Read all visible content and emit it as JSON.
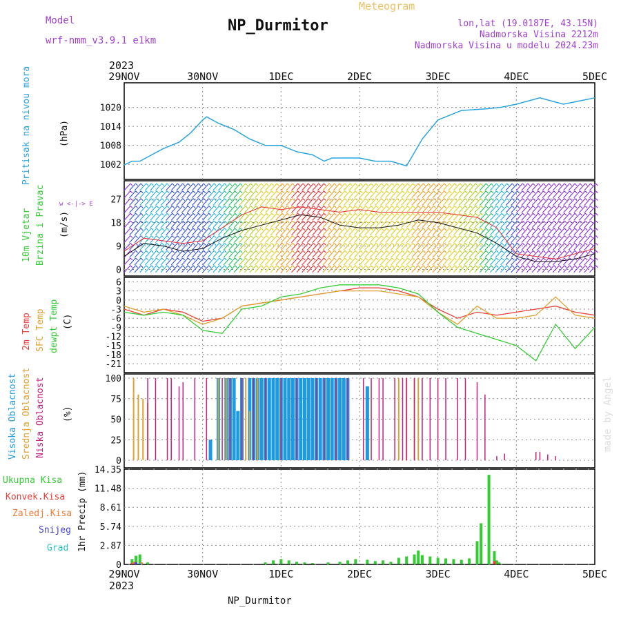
{
  "header": {
    "model_label": "Model",
    "model_name": "wrf-nmm_v3.9.1 e1km",
    "station": "NP_Durmitor",
    "meteogram": "Meteogram",
    "lonlat": "lon,lat (19.0187E, 43.15N)",
    "elevation": "Nadmorska Visina 2212m",
    "model_elevation": "Nadmorska Visina u modelu 2024.23m",
    "year_top": "2023",
    "year_bottom": "2023",
    "footer_station": "NP_Durmitor",
    "credit": "made by Angel"
  },
  "colors": {
    "pressure": "#29a3e0",
    "temp2m": "#e8413a",
    "sfc_temp": "#e0a030",
    "dewpt": "#33cc33",
    "high_cloud": "#1e9be0",
    "mid_cloud": "#e0a030",
    "low_cloud": "#c0207e",
    "total_precip": "#33cc33",
    "conv_precip": "#e8413a",
    "strat_precip": "#f07a30",
    "snow": "#4444dd",
    "hail": "#2cc0c0",
    "label_purple": "#a040d0",
    "label_green": "#33cc33"
  },
  "panel_labels": {
    "pressure": "Pritisak na nivou mora",
    "pressure_unit": "(hPa)",
    "wind_a": "10m Vjetar",
    "wind_b": "Brzina i Pravac",
    "wind_unit": "(m/s)",
    "wind_rose": "w  <-|->  E",
    "temp_a": "2m Temp",
    "temp_b": "SFC Temp",
    "temp_c": "dewpt Temp",
    "temp_unit": "(C)",
    "cloud_a": "Visoka Oblacnost",
    "cloud_b": "Srednja Oblacnost",
    "cloud_c": "Niska Oblacnost",
    "cloud_unit": "(%)",
    "precip_total": "Ukupna Kisa",
    "precip_conv": "Konvek.Kisa",
    "precip_strat": "Zaledj.Kisa",
    "precip_snow": "Snijeg",
    "precip_hail": "Grad",
    "precip_axis": "1hr Precip (mm)"
  },
  "chart_data": [
    {
      "type": "line",
      "name": "pressure",
      "x_labels": [
        "29NOV",
        "30NOV",
        "1DEC",
        "2DEC",
        "3DEC",
        "4DEC",
        "5DEC"
      ],
      "yticks": [
        "1002",
        "1008",
        "1014",
        "1020"
      ],
      "ylim": [
        999,
        1026
      ],
      "ylabel": "(hPa)",
      "grid": true,
      "x_days": [
        0,
        0.1,
        0.2,
        0.35,
        0.5,
        0.7,
        0.85,
        1.0,
        1.05,
        1.2,
        1.4,
        1.6,
        1.8,
        2.0,
        2.2,
        2.4,
        2.55,
        2.65,
        2.8,
        3.0,
        3.2,
        3.4,
        3.6,
        3.8,
        4.0,
        4.3,
        4.6,
        4.8,
        5.0,
        5.3,
        5.6,
        5.8,
        6.0
      ],
      "values": [
        1001.8,
        1003,
        1003,
        1005,
        1007,
        1009,
        1012,
        1016,
        1017,
        1015,
        1013,
        1010,
        1008,
        1008,
        1006,
        1005,
        1003,
        1004,
        1004,
        1004,
        1003,
        1003,
        1001.5,
        1010,
        1016,
        1019,
        1019.5,
        1020,
        1021,
        1023,
        1021,
        1022,
        1023
      ]
    },
    {
      "type": "line",
      "name": "wind",
      "yticks": [
        "0",
        "9",
        "18",
        "27"
      ],
      "ylim": [
        -2,
        33
      ],
      "ylabel": "(m/s)",
      "x_days": [
        0,
        0.25,
        0.5,
        0.75,
        1.0,
        1.25,
        1.5,
        1.75,
        2.0,
        2.25,
        2.5,
        2.75,
        3.0,
        3.25,
        3.5,
        3.75,
        4.0,
        4.25,
        4.5,
        4.75,
        5.0,
        5.25,
        5.5,
        5.75,
        6.0
      ],
      "values": [
        5,
        10,
        9,
        7,
        8,
        12,
        15,
        17,
        19,
        21,
        20,
        17,
        16,
        16,
        17,
        19,
        18,
        16,
        14,
        10,
        5,
        3,
        3,
        4,
        6
      ],
      "gusts": [
        7,
        12,
        11,
        10,
        11,
        16,
        21,
        24,
        23,
        24,
        23,
        22,
        23,
        22,
        22,
        22,
        22,
        21,
        20,
        16,
        6,
        5,
        4,
        6,
        8
      ]
    },
    {
      "type": "line",
      "name": "temperature",
      "yticks": [
        "6",
        "3",
        "0",
        "-3",
        "-6",
        "-9",
        "-12",
        "-15",
        "-18",
        "-21"
      ],
      "ylim": [
        -23,
        7
      ],
      "ylabel": "(C)",
      "x_days": [
        0,
        0.25,
        0.5,
        0.75,
        1.0,
        1.25,
        1.5,
        1.75,
        2.0,
        2.25,
        2.5,
        2.75,
        3.0,
        3.25,
        3.5,
        3.75,
        4.0,
        4.25,
        4.5,
        4.75,
        5.0,
        5.25,
        5.5,
        5.75,
        6.0
      ],
      "series": [
        {
          "name": "2m Temp",
          "values": [
            -3,
            -5,
            -3,
            -4,
            -7,
            -6,
            -2,
            -1,
            0,
            1,
            2,
            3,
            4,
            4,
            3,
            1,
            -3,
            -6,
            -4,
            -5,
            -4,
            -3,
            -2,
            -4,
            -5
          ]
        },
        {
          "name": "SFC Temp",
          "values": [
            -2,
            -4,
            -3,
            -5,
            -8,
            -6,
            -2,
            -1,
            0,
            1,
            2,
            3,
            3,
            3,
            2,
            1,
            -4,
            -8,
            -2,
            -6,
            -6,
            -5,
            1,
            -5,
            -6
          ]
        },
        {
          "name": "dewpt Temp",
          "values": [
            -4,
            -5,
            -4,
            -5,
            -10,
            -11,
            -3,
            -2,
            1,
            2,
            4,
            5,
            5,
            5,
            4,
            2,
            -4,
            -9,
            -11,
            -13,
            -15,
            -20,
            -8,
            -16,
            -9
          ]
        }
      ]
    },
    {
      "type": "bar",
      "name": "cloud",
      "yticks": [
        "0",
        "25",
        "50",
        "75",
        "100"
      ],
      "ylim": [
        0,
        100
      ],
      "ylabel": "(%)",
      "series": [
        {
          "name": "Visoka Oblacnost",
          "x_days": [
            1.1,
            1.2,
            1.3,
            1.35,
            1.4,
            1.45,
            1.5,
            1.6,
            1.65,
            1.7,
            1.75,
            1.8,
            1.85,
            1.9,
            1.95,
            2.0,
            2.05,
            2.1,
            2.15,
            2.2,
            2.25,
            2.3,
            2.35,
            2.4,
            2.45,
            2.5,
            2.55,
            2.6,
            2.65,
            2.7,
            2.75,
            2.8,
            2.85,
            3.1
          ],
          "values": [
            25,
            100,
            100,
            100,
            100,
            60,
            100,
            100,
            100,
            100,
            100,
            100,
            100,
            100,
            100,
            100,
            100,
            100,
            100,
            100,
            100,
            100,
            100,
            100,
            100,
            100,
            100,
            100,
            100,
            100,
            100,
            100,
            100,
            90
          ]
        },
        {
          "name": "Srednja Oblacnost",
          "x_days": [
            0.12,
            0.18,
            0.24,
            0.3,
            1.2,
            1.3,
            1.55,
            1.6,
            1.7,
            3.5,
            3.6,
            3.7,
            3.75
          ],
          "values": [
            100,
            80,
            75,
            70,
            100,
            100,
            100,
            60,
            100,
            100,
            100,
            100,
            100
          ]
        },
        {
          "name": "Niska Oblacnost",
          "x_days": [
            0.3,
            0.4,
            0.55,
            0.6,
            0.7,
            0.75,
            0.9,
            1.05,
            1.25,
            1.35,
            1.5,
            1.65,
            1.8,
            2.0,
            2.2,
            2.45,
            2.55,
            2.7,
            2.85,
            3.05,
            3.15,
            3.25,
            3.3,
            3.45,
            3.55,
            3.6,
            3.7,
            3.8,
            3.9,
            4.0,
            4.1,
            4.25,
            4.35,
            4.5,
            4.6,
            4.75,
            4.85,
            5.25,
            5.3,
            5.4,
            5.5
          ],
          "values": [
            100,
            100,
            100,
            100,
            90,
            95,
            100,
            100,
            100,
            100,
            100,
            100,
            100,
            100,
            100,
            100,
            100,
            100,
            100,
            100,
            100,
            100,
            100,
            100,
            100,
            100,
            100,
            100,
            100,
            100,
            100,
            100,
            100,
            95,
            80,
            5,
            8,
            10,
            10,
            7,
            5
          ]
        }
      ]
    },
    {
      "type": "bar",
      "name": "precipitation",
      "yticks": [
        "0",
        "2.87",
        "5.74",
        "8.61",
        "11.48",
        "14.35"
      ],
      "ylim": [
        0,
        14.35
      ],
      "ylabel": "1hr Precip (mm)",
      "series": [
        {
          "name": "Ukupna Kisa",
          "x_days": [
            0.1,
            0.15,
            0.2,
            0.3,
            1.8,
            1.9,
            2.0,
            2.1,
            2.2,
            2.3,
            2.4,
            2.6,
            2.75,
            2.85,
            2.95,
            3.1,
            3.2,
            3.3,
            3.4,
            3.5,
            3.6,
            3.7,
            3.75,
            3.8,
            3.9,
            4.0,
            4.1,
            4.2,
            4.3,
            4.4,
            4.5,
            4.55,
            4.65,
            4.72,
            4.75,
            4.78,
            4.85
          ],
          "values": [
            0.8,
            1.3,
            1.5,
            0.3,
            0.3,
            0.6,
            0.8,
            0.6,
            0.4,
            0.3,
            0.2,
            0.3,
            0.4,
            0.6,
            0.8,
            0.7,
            0.5,
            0.6,
            0.4,
            1.0,
            1.2,
            1.5,
            2.1,
            1.4,
            1.2,
            1.0,
            0.9,
            0.8,
            0.7,
            0.9,
            3.5,
            6.2,
            13.5,
            2.0,
            0.6,
            0.3,
            0.1
          ]
        },
        {
          "name": "Konvek.Kisa",
          "x_days": [
            0.1,
            0.15,
            4.72
          ],
          "values": [
            0.2,
            0.3,
            0.5
          ]
        },
        {
          "name": "Zaledj.Kisa",
          "x_days": [
            0.12,
            0.22
          ],
          "values": [
            0.4,
            0.3
          ]
        },
        {
          "name": "Snijeg",
          "x_days": [
            0.15
          ],
          "values": [
            0.3
          ]
        },
        {
          "name": "Grad",
          "x_days": [
            0.2
          ],
          "values": [
            0.2
          ]
        }
      ]
    }
  ]
}
